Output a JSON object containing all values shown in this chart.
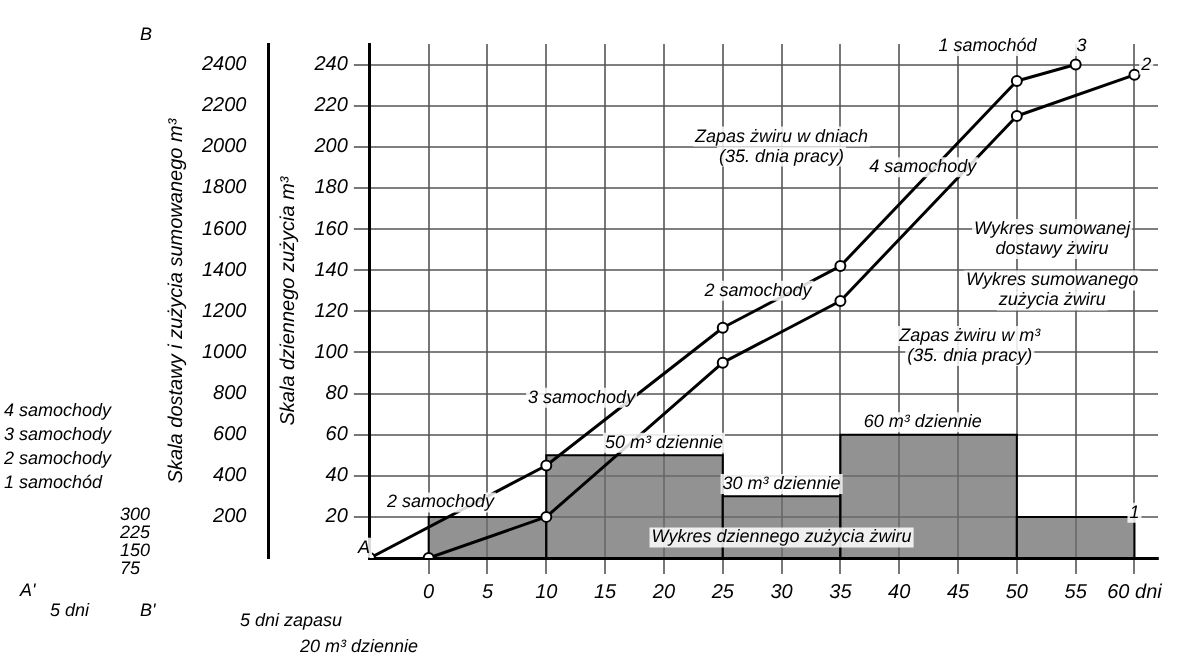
{
  "chart_data": {
    "type": "line",
    "ylabel": "Skala dziennego zużycia m³",
    "y2label": "Skala dostawy i zużycia sumowanego m³",
    "xlim": [
      -5,
      62
    ],
    "xticks": [
      0,
      5,
      10,
      15,
      20,
      25,
      30,
      35,
      40,
      45,
      50,
      55,
      {
        "value": 60,
        "label": "60 dni"
      }
    ],
    "ylim": [
      0,
      250
    ],
    "yticks": [
      20,
      40,
      60,
      80,
      100,
      120,
      140,
      160,
      180,
      200,
      220,
      240
    ],
    "y2lim": [
      0,
      2500
    ],
    "y2ticks": [
      200,
      400,
      600,
      800,
      1000,
      1200,
      1400,
      1600,
      1800,
      2000,
      2200,
      2400
    ],
    "grid": true,
    "marker": "circle",
    "line_style": "solid",
    "series": [
      {
        "type": "histogram",
        "color": "#6e6e6e",
        "bins": [
          0,
          10,
          25,
          35,
          50,
          60
        ],
        "values": [
          20,
          50,
          30,
          60,
          20
        ]
      },
      {
        "type": "line",
        "axis": "y2",
        "color": "#000000",
        "x": [
          -5,
          10,
          25,
          35,
          50,
          55
        ],
        "values": [
          0,
          450,
          1120,
          1420,
          2320,
          2400
        ]
      },
      {
        "type": "line",
        "axis": "y2",
        "color": "#000000",
        "x": [
          0,
          10,
          25,
          35,
          50,
          60
        ],
        "values": [
          0,
          200,
          950,
          1250,
          2150,
          2350
        ]
      }
    ],
    "annotations": [
      "2 samochody",
      "3 samochody",
      "2 samochody",
      "4 samochody",
      "1 samochód",
      "3",
      "2",
      "1",
      "A",
      "50 m³ dziennie",
      "30 m³ dziennie",
      "60 m³ dziennie",
      "Wykres dziennego zużycia żwiru",
      "Zapas żwiru w dniach\n(35. dnia pracy)",
      "Wykres sumowanej\ndostawy żwiru",
      "Wykres sumowanego\nzużycia żwiru",
      "Zapas żwiru w m³\n(35. dnia pracy)",
      "4 samochody",
      "3 samochody",
      "2 samochody",
      "1 samochód",
      "300",
      "225",
      "150",
      "75",
      "A'",
      "B'",
      "B",
      "5 dni",
      "5 dni zapasu",
      "20 m³ dziennie"
    ]
  }
}
